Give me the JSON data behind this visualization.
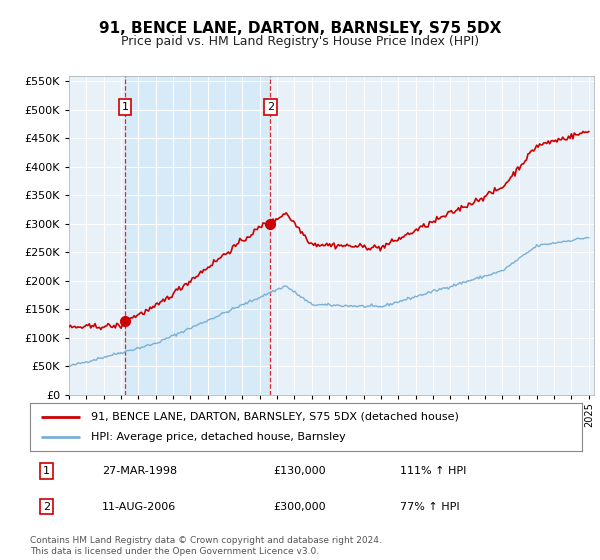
{
  "title": "91, BENCE LANE, DARTON, BARNSLEY, S75 5DX",
  "subtitle": "Price paid vs. HM Land Registry's House Price Index (HPI)",
  "legend_line1": "91, BENCE LANE, DARTON, BARNSLEY, S75 5DX (detached house)",
  "legend_line2": "HPI: Average price, detached house, Barnsley",
  "transaction1_date": "27-MAR-1998",
  "transaction1_price": "£130,000",
  "transaction1_hpi": "111% ↑ HPI",
  "transaction2_date": "11-AUG-2006",
  "transaction2_price": "£300,000",
  "transaction2_hpi": "77% ↑ HPI",
  "copyright": "Contains HM Land Registry data © Crown copyright and database right 2024.\nThis data is licensed under the Open Government Licence v3.0.",
  "transaction1_year": 1998.23,
  "transaction1_value": 130000,
  "transaction2_year": 2006.62,
  "transaction2_value": 300000,
  "red_color": "#cc0000",
  "blue_color": "#7ab0d4",
  "shade_color": "#ddeeff",
  "background_plot": "#e8f0f8",
  "grid_color": "#ffffff",
  "ylim_max": 560000,
  "ylim_min": 0,
  "xmin": 1995,
  "xmax": 2025
}
